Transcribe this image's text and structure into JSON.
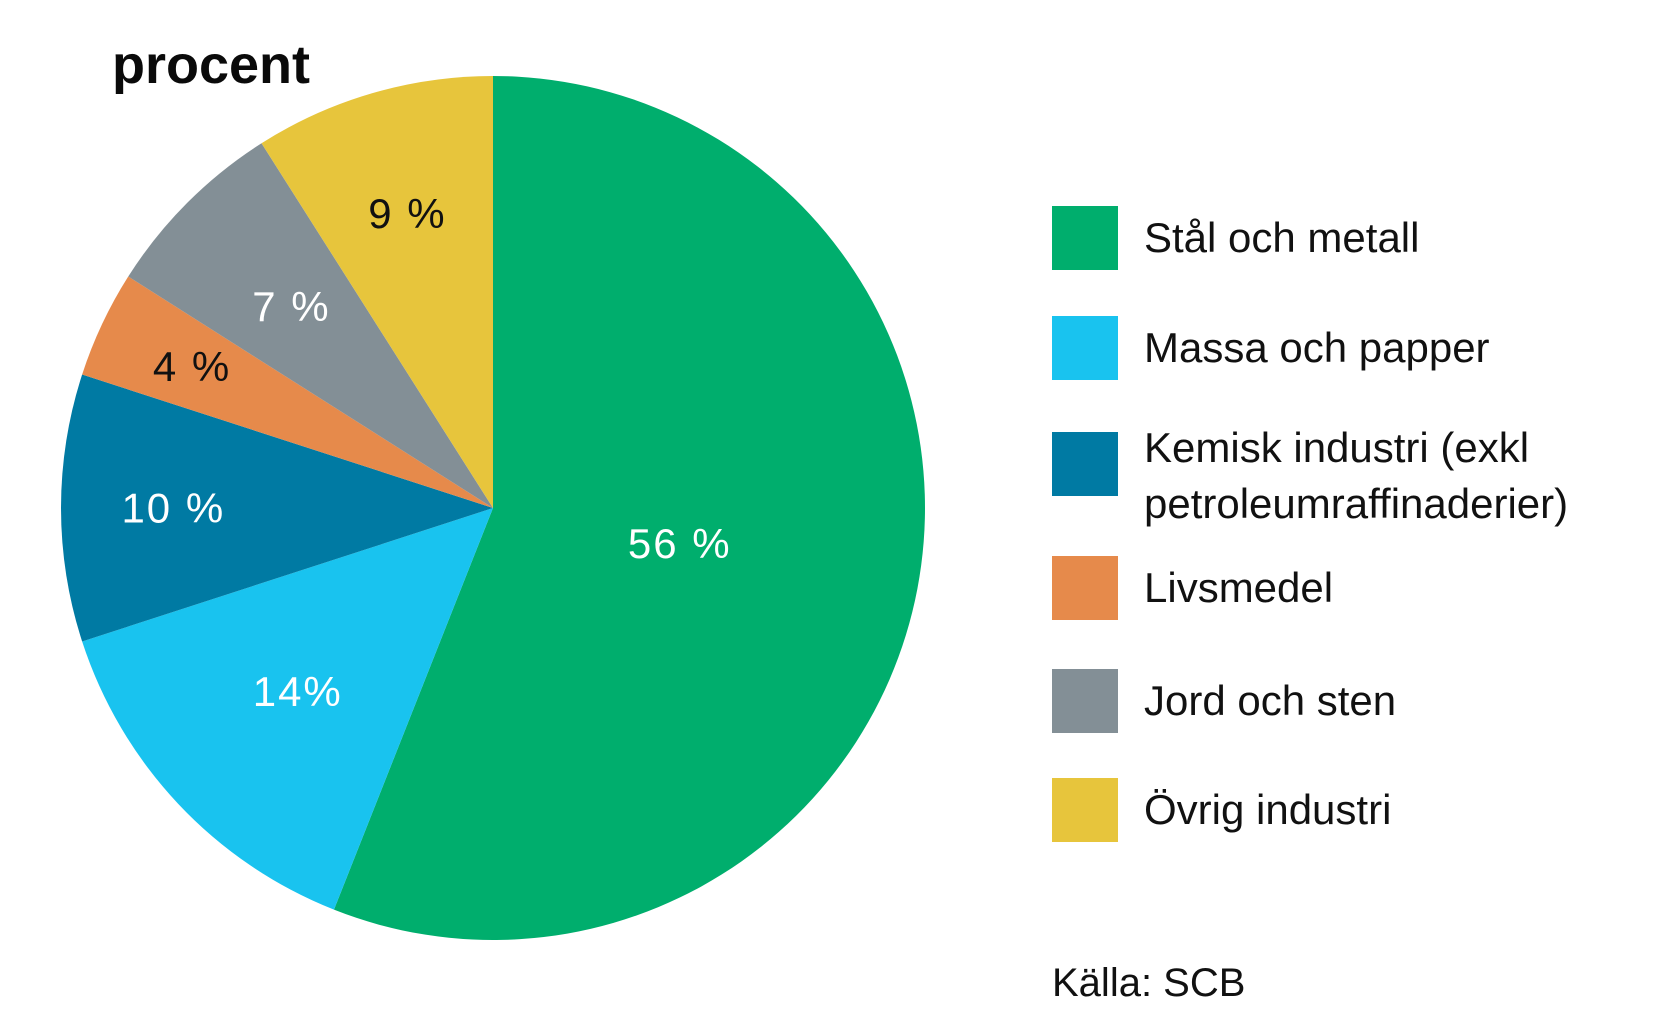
{
  "chart_data": {
    "type": "pie",
    "title": "procent",
    "slices": [
      {
        "name": "Stål och metall",
        "value": 56,
        "label": "56 %",
        "color": "#00ae6d",
        "label_color": "#ffffff"
      },
      {
        "name": "Massa och papper",
        "value": 14,
        "label": "14%",
        "color": "#19c3ef",
        "label_color": "#ffffff"
      },
      {
        "name": "Kemisk industri (exkl\npetroleumraffinaderier)",
        "value": 10,
        "label": "10 %",
        "color": "#007aa3",
        "label_color": "#ffffff"
      },
      {
        "name": "Livsmedel",
        "value": 4,
        "label": "4 %",
        "color": "#e68a4b",
        "label_color": "#111111"
      },
      {
        "name": "Jord och sten",
        "value": 7,
        "label": "7 %",
        "color": "#838f96",
        "label_color": "#ffffff"
      },
      {
        "name": "Övrig industri",
        "value": 9,
        "label": "9 %",
        "color": "#e7c53c",
        "label_color": "#111111"
      }
    ],
    "legend_position": "right",
    "source": "Källa: SCB"
  }
}
